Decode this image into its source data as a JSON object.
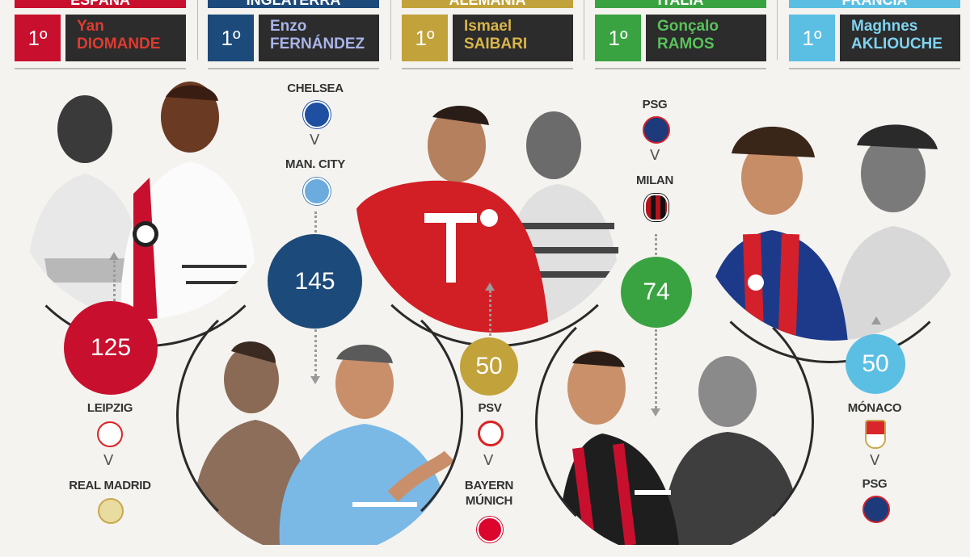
{
  "columns": [
    {
      "country": "ESPAÑA",
      "rank": "1º",
      "first": "Yan",
      "last": "DIOMANDE",
      "color": "#c8102e",
      "name_color": "#e03a2f"
    },
    {
      "country": "INGLATERRA",
      "rank": "1º",
      "first": "Enzo",
      "last": "FERNÁNDEZ",
      "color": "#1c4a7a",
      "name_color": "#a9b4e8"
    },
    {
      "country": "ALEMANIA",
      "rank": "1º",
      "first": "Ismael",
      "last": "SAIBARI",
      "color": "#c2a23a",
      "name_color": "#d9b54a"
    },
    {
      "country": "ITALIA",
      "rank": "1º",
      "first": "Gonçalo",
      "last": "RAMOS",
      "color": "#3aa341",
      "name_color": "#58c25a"
    },
    {
      "country": "FRANCIA",
      "rank": "1º",
      "first": "Maghnes",
      "last": "AKLIOUCHE",
      "color": "#5bbfe3",
      "name_color": "#7fd3f0"
    }
  ],
  "fees": [
    {
      "value": "125",
      "color": "#c8102e"
    },
    {
      "value": "145",
      "color": "#1c4a7a"
    },
    {
      "value": "50",
      "color": "#c2a23a"
    },
    {
      "value": "74",
      "color": "#3aa341"
    },
    {
      "value": "50",
      "color": "#5bbfe3"
    }
  ],
  "clubs": {
    "leipzig": "LEIPZIG",
    "real_madrid": "REAL MADRID",
    "chelsea": "CHELSEA",
    "man_city": "MAN. CITY",
    "psv": "PSV",
    "bayern": "BAYERN MÚNICH",
    "psg_top": "PSG",
    "milan": "MILAN",
    "monaco": "MÓNACO",
    "psg_bottom": "PSG"
  },
  "arrow_symbol": "V",
  "crest_colors": {
    "leipzig": "#d6d6d6",
    "real_madrid": "#e8dca0",
    "chelsea": "#1f4fa0",
    "man_city": "#6cabdd",
    "psv": "#d22",
    "bayern": "#dc052d",
    "psg": "#1d3a7a",
    "milan": "#b5121b",
    "monaco": "#d9262c"
  }
}
